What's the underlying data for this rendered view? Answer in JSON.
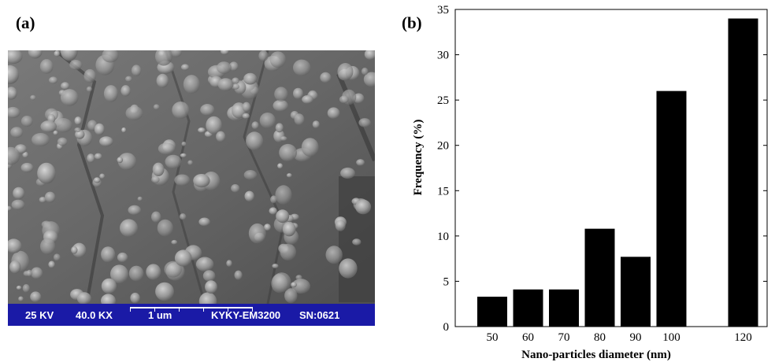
{
  "panels": {
    "a_label": "(a)",
    "b_label": "(b)"
  },
  "sem": {
    "voltage": "25 KV",
    "magnification": "40.0 KX",
    "scale": "1 um",
    "instrument": "KYKY-EM3200",
    "serial": "SN:0621",
    "bar_color": "#1a1aa6"
  },
  "chart_data": {
    "type": "bar",
    "categories": [
      "50",
      "60",
      "70",
      "80",
      "90",
      "100",
      "120"
    ],
    "values": [
      3.3,
      4.1,
      4.1,
      10.8,
      7.7,
      26.0,
      34.0
    ],
    "xlabel": "Nano-particles diameter (nm)",
    "ylabel": "Frequency (%)",
    "ylim": [
      0,
      35
    ],
    "yticks": [
      "0",
      "5",
      "10",
      "15",
      "20",
      "25",
      "30",
      "35"
    ],
    "bar_color": "#000000",
    "grid": false,
    "legend": "none"
  }
}
